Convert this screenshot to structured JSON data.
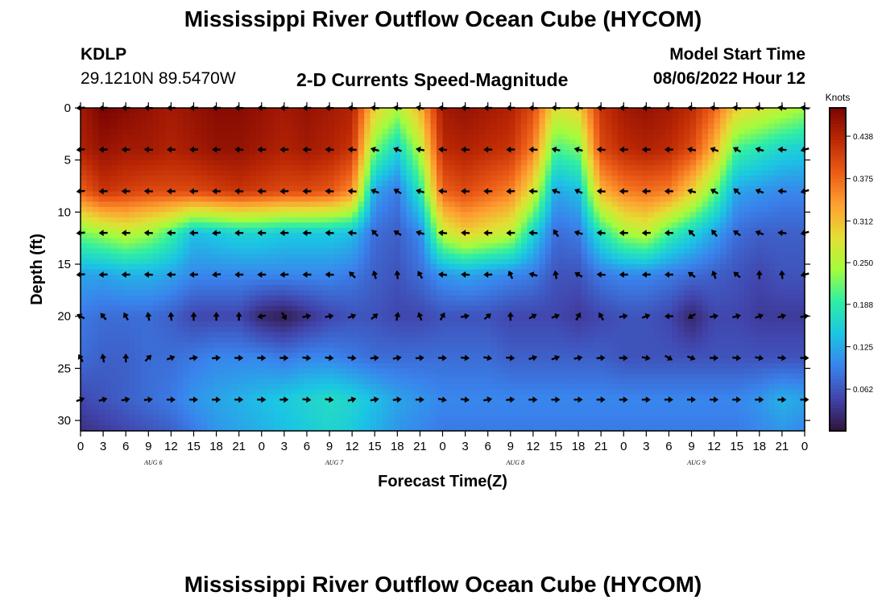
{
  "header": {
    "title": "Mississippi River Outflow Ocean Cube (HYCOM)",
    "station_id": "KDLP",
    "station_coords": "29.1210N  89.5470W",
    "product": "2-D Currents Speed-Magnitude",
    "start_label": "Model Start Time",
    "start_value": "08/06/2022 Hour 12"
  },
  "footer": {
    "title": "Mississippi River Outflow Ocean Cube (HYCOM)"
  },
  "chart_data": {
    "type": "heatmap",
    "title": "2-D Currents Speed-Magnitude",
    "xlabel": "Forecast Time(Z)",
    "ylabel": "Depth (ft)",
    "x_range_hours": [
      0,
      96
    ],
    "y_range_ft": [
      31,
      0
    ],
    "x_tick_labels": [
      "0",
      "3",
      "6",
      "9",
      "12",
      "15",
      "18",
      "21",
      "0",
      "3",
      "6",
      "9",
      "12",
      "15",
      "18",
      "21",
      "0",
      "3",
      "6",
      "9",
      "12",
      "15",
      "18",
      "21",
      "0",
      "3",
      "6",
      "9",
      "12",
      "15",
      "18",
      "21",
      "0"
    ],
    "y_ticks": [
      0,
      5,
      10,
      15,
      20,
      25,
      30
    ],
    "date_labels": [
      {
        "hour": 9,
        "label": "AUG 6"
      },
      {
        "hour": 33,
        "label": "AUG 7"
      },
      {
        "hour": 57,
        "label": "AUG 8"
      },
      {
        "hour": 81,
        "label": "AUG 9"
      }
    ],
    "colorbar": {
      "label": "Knots",
      "ticks": [
        0.062,
        0.125,
        0.188,
        0.25,
        0.312,
        0.375,
        0.438
      ],
      "range": [
        0.0,
        0.48
      ]
    },
    "speed_field_profiles": {
      "hours": [
        0,
        3,
        6,
        9,
        12,
        15,
        18,
        21,
        24,
        27,
        30,
        33,
        36,
        39,
        42,
        45,
        48,
        51,
        54,
        57,
        60,
        63,
        66,
        69,
        72,
        75,
        78,
        81,
        84,
        87,
        90,
        93,
        96
      ],
      "depths_ft": [
        0,
        4,
        8,
        12,
        16,
        20,
        24,
        28,
        31
      ],
      "values_knots": [
        [
          0.45,
          0.48,
          0.47,
          0.46,
          0.45,
          0.46,
          0.47,
          0.47,
          0.46,
          0.45,
          0.46,
          0.45,
          0.44,
          0.3,
          0.25,
          0.32,
          0.45,
          0.46,
          0.45,
          0.44,
          0.4,
          0.28,
          0.3,
          0.42,
          0.45,
          0.46,
          0.45,
          0.43,
          0.38,
          0.3,
          0.28,
          0.26,
          0.24
        ],
        [
          0.44,
          0.46,
          0.45,
          0.45,
          0.44,
          0.45,
          0.46,
          0.46,
          0.45,
          0.44,
          0.45,
          0.44,
          0.42,
          0.22,
          0.16,
          0.25,
          0.43,
          0.44,
          0.43,
          0.42,
          0.36,
          0.2,
          0.22,
          0.4,
          0.43,
          0.44,
          0.43,
          0.4,
          0.32,
          0.2,
          0.18,
          0.16,
          0.15
        ],
        [
          0.38,
          0.42,
          0.41,
          0.4,
          0.4,
          0.4,
          0.41,
          0.42,
          0.41,
          0.4,
          0.4,
          0.39,
          0.35,
          0.12,
          0.09,
          0.18,
          0.38,
          0.4,
          0.38,
          0.36,
          0.28,
          0.12,
          0.14,
          0.32,
          0.36,
          0.37,
          0.36,
          0.3,
          0.22,
          0.12,
          0.11,
          0.1,
          0.1
        ],
        [
          0.22,
          0.24,
          0.26,
          0.24,
          0.2,
          0.14,
          0.15,
          0.16,
          0.16,
          0.15,
          0.15,
          0.15,
          0.14,
          0.08,
          0.07,
          0.1,
          0.26,
          0.3,
          0.28,
          0.26,
          0.16,
          0.08,
          0.09,
          0.18,
          0.24,
          0.26,
          0.2,
          0.16,
          0.12,
          0.08,
          0.07,
          0.07,
          0.07
        ],
        [
          0.12,
          0.12,
          0.13,
          0.13,
          0.12,
          0.1,
          0.1,
          0.1,
          0.1,
          0.1,
          0.1,
          0.1,
          0.09,
          0.07,
          0.06,
          0.08,
          0.11,
          0.12,
          0.11,
          0.1,
          0.09,
          0.06,
          0.06,
          0.09,
          0.1,
          0.1,
          0.09,
          0.08,
          0.07,
          0.06,
          0.05,
          0.06,
          0.06
        ],
        [
          0.09,
          0.08,
          0.08,
          0.08,
          0.07,
          0.05,
          0.05,
          0.05,
          0.02,
          0.01,
          0.03,
          0.05,
          0.06,
          0.06,
          0.05,
          0.05,
          0.06,
          0.06,
          0.06,
          0.05,
          0.05,
          0.05,
          0.04,
          0.05,
          0.06,
          0.06,
          0.05,
          0.02,
          0.05,
          0.05,
          0.04,
          0.04,
          0.04
        ],
        [
          0.08,
          0.07,
          0.07,
          0.08,
          0.08,
          0.09,
          0.1,
          0.1,
          0.1,
          0.09,
          0.1,
          0.1,
          0.09,
          0.08,
          0.08,
          0.08,
          0.08,
          0.08,
          0.08,
          0.07,
          0.07,
          0.07,
          0.07,
          0.07,
          0.06,
          0.06,
          0.06,
          0.06,
          0.06,
          0.06,
          0.06,
          0.06,
          0.06
        ],
        [
          0.05,
          0.06,
          0.07,
          0.08,
          0.09,
          0.11,
          0.12,
          0.13,
          0.14,
          0.15,
          0.16,
          0.17,
          0.16,
          0.14,
          0.12,
          0.11,
          0.1,
          0.1,
          0.1,
          0.1,
          0.1,
          0.1,
          0.1,
          0.1,
          0.1,
          0.1,
          0.1,
          0.1,
          0.1,
          0.1,
          0.11,
          0.13,
          0.12
        ],
        [
          0.03,
          0.04,
          0.05,
          0.06,
          0.07,
          0.09,
          0.11,
          0.12,
          0.13,
          0.14,
          0.15,
          0.16,
          0.15,
          0.13,
          0.11,
          0.1,
          0.09,
          0.09,
          0.09,
          0.09,
          0.09,
          0.09,
          0.09,
          0.09,
          0.09,
          0.09,
          0.09,
          0.09,
          0.09,
          0.09,
          0.1,
          0.11,
          0.1
        ]
      ]
    },
    "vector_arrows": {
      "hours": [
        0,
        3,
        6,
        9,
        12,
        15,
        18,
        21,
        24,
        27,
        30,
        33,
        36,
        39,
        42,
        45,
        48,
        51,
        54,
        57,
        60,
        63,
        66,
        69,
        72,
        75,
        78,
        81,
        84,
        87,
        90,
        93,
        96
      ],
      "depths_ft": [
        0,
        4,
        8,
        12,
        16,
        20,
        24,
        28
      ],
      "direction_deg_from_east": [
        [
          185,
          182,
          180,
          178,
          180,
          182,
          180,
          178,
          180,
          182,
          180,
          178,
          176,
          175,
          172,
          170,
          175,
          178,
          180,
          182,
          178,
          176,
          174,
          176,
          180,
          182,
          180,
          178,
          175,
          172,
          170,
          168,
          170
        ],
        [
          185,
          182,
          180,
          178,
          180,
          182,
          180,
          178,
          180,
          182,
          180,
          178,
          176,
          165,
          160,
          170,
          175,
          178,
          180,
          182,
          178,
          168,
          165,
          176,
          180,
          182,
          180,
          170,
          160,
          150,
          165,
          175,
          195
        ],
        [
          185,
          182,
          180,
          178,
          180,
          182,
          180,
          178,
          180,
          182,
          180,
          178,
          176,
          160,
          150,
          165,
          175,
          178,
          180,
          182,
          178,
          160,
          155,
          176,
          180,
          182,
          180,
          165,
          150,
          140,
          160,
          175,
          195
        ],
        [
          185,
          182,
          180,
          178,
          180,
          182,
          185,
          180,
          180,
          182,
          180,
          178,
          176,
          135,
          150,
          165,
          175,
          178,
          180,
          182,
          178,
          125,
          165,
          176,
          180,
          182,
          180,
          135,
          130,
          145,
          160,
          175,
          195
        ],
        [
          185,
          182,
          180,
          178,
          180,
          182,
          185,
          180,
          180,
          182,
          180,
          178,
          135,
          105,
          95,
          120,
          175,
          178,
          180,
          115,
          165,
          100,
          150,
          176,
          180,
          182,
          180,
          145,
          110,
          140,
          90,
          95,
          195
        ],
        [
          150,
          130,
          120,
          100,
          95,
          90,
          90,
          90,
          190,
          300,
          10,
          10,
          20,
          40,
          80,
          110,
          60,
          10,
          40,
          90,
          30,
          20,
          60,
          120,
          10,
          20,
          180,
          210,
          10,
          15,
          20,
          15,
          10
        ],
        [
          120,
          100,
          90,
          45,
          20,
          10,
          5,
          0,
          0,
          0,
          355,
          355,
          355,
          5,
          10,
          5,
          0,
          355,
          350,
          355,
          15,
          20,
          10,
          5,
          0,
          350,
          330,
          340,
          0,
          355,
          350,
          355,
          0
        ],
        [
          20,
          15,
          10,
          5,
          0,
          0,
          0,
          0,
          0,
          0,
          355,
          355,
          15,
          10,
          5,
          0,
          350,
          355,
          10,
          5,
          0,
          0,
          0,
          0,
          0,
          0,
          0,
          0,
          0,
          0,
          0,
          0,
          0
        ]
      ]
    }
  }
}
